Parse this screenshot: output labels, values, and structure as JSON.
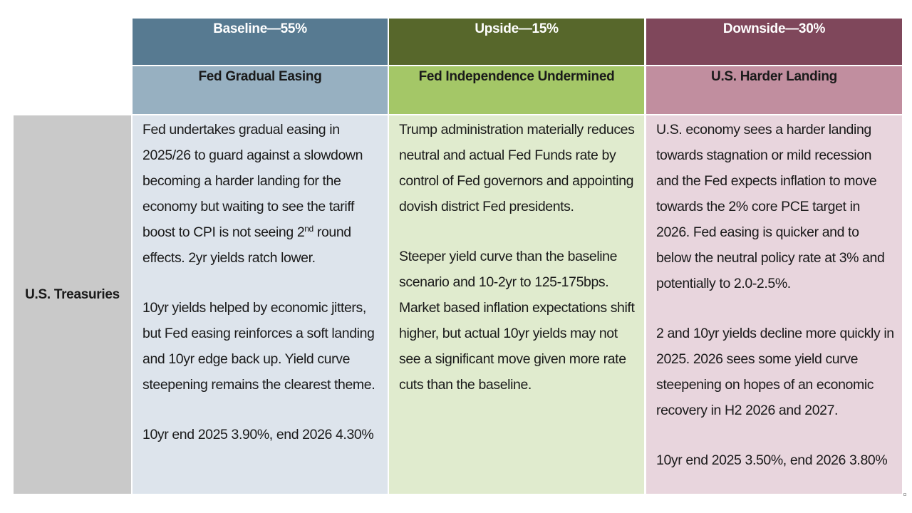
{
  "headers": [
    {
      "scenario": "Baseline—55%",
      "title": "Fed Gradual Easing"
    },
    {
      "scenario": "Upside—15%",
      "title": "Fed Independence Undermined"
    },
    {
      "scenario": "Downside—30%",
      "title": "U.S. Harder Landing"
    }
  ],
  "row_label": "U.S. Treasuries",
  "baseline": {
    "p1_a": "Fed undertakes gradual easing in 2025/26 to guard against a slowdown becoming a harder landing for the economy but waiting to see the tariff boost to CPI is not seeing 2",
    "p1_sup": "nd",
    "p1_b": " round effects.  2yr yields ratch lower.",
    "p2": "10yr yields helped by economic jitters, but Fed easing reinforces a soft landing and 10yr edge back up. Yield curve steepening remains the clearest theme.",
    "p3": "10yr end 2025 3.90%, end 2026 4.30%"
  },
  "upside": {
    "p1": "Trump administration materially reduces neutral and actual Fed Funds rate by control of Fed governors and appointing dovish district Fed presidents.",
    "p2": "Steeper yield curve than the baseline scenario and 10-2yr to 125-175bps. Market based inflation expectations shift higher, but actual 10yr yields may not see a significant move given more rate cuts than the baseline."
  },
  "downside": {
    "p1": "U.S. economy sees a harder landing towards stagnation or mild recession and the Fed expects inflation to move towards the 2% core PCE target in 2026.  Fed easing is quicker and to below the neutral policy rate at 3% and potentially to 2.0-2.5%.",
    "p2": "2 and 10yr yields decline more quickly in 2025.  2026 sees some yield curve steepening on hopes of an economic recovery in H2 2026 and 2027.",
    "p3": "10yr end 2025 3.50%, end 2026 3.80%"
  },
  "colors": {
    "baseline_header": "#577a91",
    "baseline_subheader": "#97b0c1",
    "baseline_body": "#dde4ec",
    "upside_header": "#57672b",
    "upside_subheader": "#a4c767",
    "upside_body": "#e0ebce",
    "downside_header": "#7f475b",
    "downside_subheader": "#c18e9f",
    "downside_body": "#e8d5dd",
    "row_label_bg": "#c9c9c9"
  }
}
